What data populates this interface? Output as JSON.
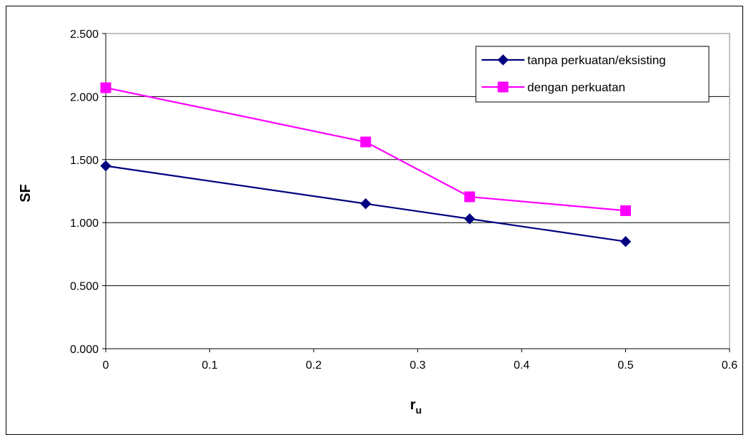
{
  "chart_data": {
    "type": "line",
    "xlabel": "r",
    "xlabel_subscript": "u",
    "ylabel": "SF",
    "xlim": [
      0,
      0.6
    ],
    "ylim": [
      0,
      2.5
    ],
    "xticks": [
      "0",
      "0.1",
      "0.2",
      "0.3",
      "0.4",
      "0.5",
      "0.6"
    ],
    "yticks": [
      "0.000",
      "0.500",
      "1.000",
      "1.500",
      "2.000",
      "2.500"
    ],
    "grid": "horizontal",
    "legend_position": "top-right",
    "series": [
      {
        "name": "tanpa perkuatan/eksisting",
        "color": "#000080",
        "marker": "diamond",
        "x": [
          0,
          0.25,
          0.35,
          0.5
        ],
        "y": [
          1.45,
          1.15,
          1.03,
          0.85
        ]
      },
      {
        "name": "dengan perkuatan",
        "color": "#FF00FF",
        "marker": "square",
        "x": [
          0,
          0.25,
          0.35,
          0.5
        ],
        "y": [
          2.07,
          1.64,
          1.205,
          1.095
        ]
      }
    ]
  }
}
